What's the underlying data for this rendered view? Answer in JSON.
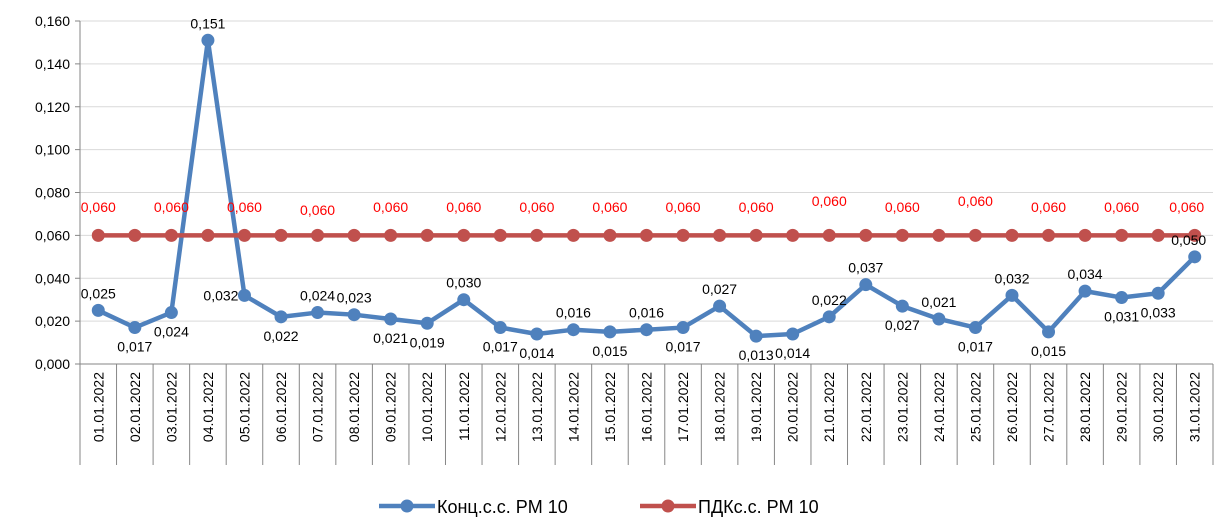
{
  "chart_data": {
    "type": "line",
    "categories": [
      "01.01.2022",
      "02.01.2022",
      "03.01.2022",
      "04.01.2022",
      "05.01.2022",
      "06.01.2022",
      "07.01.2022",
      "08.01.2022",
      "09.01.2022",
      "10.01.2022",
      "11.01.2022",
      "12.01.2022",
      "13.01.2022",
      "14.01.2022",
      "15.01.2022",
      "16.01.2022",
      "17.01.2022",
      "18.01.2022",
      "19.01.2022",
      "20.01.2022",
      "21.01.2022",
      "22.01.2022",
      "23.01.2022",
      "24.01.2022",
      "25.01.2022",
      "26.01.2022",
      "27.01.2022",
      "28.01.2022",
      "29.01.2022",
      "30.01.2022",
      "31.01.2022"
    ],
    "series": [
      {
        "name": "Конц.с.с. PM 10",
        "color": "#4f81bd",
        "values": [
          0.025,
          0.017,
          0.024,
          0.151,
          0.032,
          0.022,
          0.024,
          0.023,
          0.021,
          0.019,
          0.03,
          0.017,
          0.014,
          0.016,
          0.015,
          0.016,
          0.017,
          0.027,
          0.013,
          0.014,
          0.022,
          0.037,
          0.027,
          0.021,
          0.017,
          0.032,
          0.015,
          0.034,
          0.031,
          0.033,
          0.05
        ],
        "label_position": [
          "above",
          "below",
          "below",
          "above",
          "left",
          "below",
          "above",
          "above",
          "below",
          "below",
          "above",
          "below",
          "below",
          "above",
          "below",
          "above",
          "below",
          "above",
          "below",
          "below",
          "above",
          "above",
          "below",
          "above",
          "below",
          "above",
          "below",
          "above",
          "below",
          "below",
          "above"
        ]
      },
      {
        "name": "ПДКс.с. PM 10",
        "color": "#c0504d",
        "values": [
          0.06,
          0.06,
          0.06,
          0.06,
          0.06,
          0.06,
          0.06,
          0.06,
          0.06,
          0.06,
          0.06,
          0.06,
          0.06,
          0.06,
          0.06,
          0.06,
          0.06,
          0.06,
          0.06,
          0.06,
          0.06,
          0.06,
          0.06,
          0.06,
          0.06,
          0.06,
          0.06,
          0.06,
          0.06,
          0.06,
          0.06
        ],
        "label_days": [
          0,
          2,
          4,
          6,
          8,
          10,
          12,
          14,
          16,
          18,
          20,
          22,
          24,
          26,
          28,
          30
        ]
      }
    ],
    "ylim": [
      0,
      0.16
    ],
    "y_ticks": [
      "0,000",
      "0,020",
      "0,040",
      "0,060",
      "0,080",
      "0,100",
      "0,120",
      "0,140",
      "0,160"
    ],
    "grid": true,
    "legend": "bottom"
  }
}
